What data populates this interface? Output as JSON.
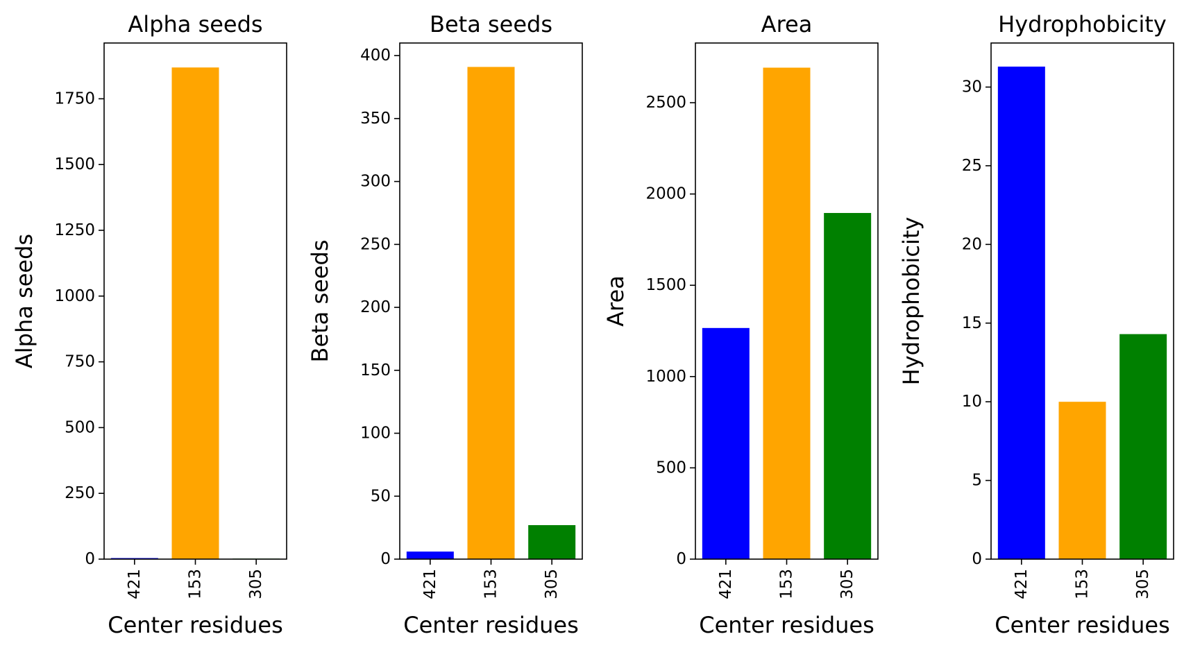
{
  "chart_data": [
    {
      "type": "bar",
      "title": "Alpha seeds",
      "xlabel": "Center residues",
      "ylabel": "Alpha seeds",
      "categories": [
        "421",
        "153",
        "305"
      ],
      "values": [
        4,
        1869,
        2
      ],
      "colors": [
        "#0000ff",
        "#ffa500",
        "#008000"
      ],
      "ylim": [
        0,
        1962
      ],
      "yticks": [
        0,
        250,
        500,
        750,
        1000,
        1250,
        1500,
        1750
      ],
      "grid": false
    },
    {
      "type": "bar",
      "title": "Beta seeds",
      "xlabel": "Center residues",
      "ylabel": "Beta seeds",
      "categories": [
        "421",
        "153",
        "305"
      ],
      "values": [
        6,
        391,
        27
      ],
      "colors": [
        "#0000ff",
        "#ffa500",
        "#008000"
      ],
      "ylim": [
        0,
        410
      ],
      "yticks": [
        0,
        50,
        100,
        150,
        200,
        250,
        300,
        350,
        400
      ],
      "grid": false
    },
    {
      "type": "bar",
      "title": "Area",
      "xlabel": "Center residues",
      "ylabel": "Area",
      "categories": [
        "421",
        "153",
        "305"
      ],
      "values": [
        1266,
        2692,
        1896
      ],
      "colors": [
        "#0000ff",
        "#ffa500",
        "#008000"
      ],
      "ylim": [
        0,
        2827
      ],
      "yticks": [
        0,
        500,
        1000,
        1500,
        2000,
        2500
      ],
      "grid": false
    },
    {
      "type": "bar",
      "title": "Hydrophobicity",
      "xlabel": "Center residues",
      "ylabel": "Hydrophobicity",
      "categories": [
        "421",
        "153",
        "305"
      ],
      "values": [
        31.3,
        10.0,
        14.3
      ],
      "colors": [
        "#0000ff",
        "#ffa500",
        "#008000"
      ],
      "ylim": [
        0,
        32.8
      ],
      "yticks": [
        0,
        5,
        10,
        15,
        20,
        25,
        30
      ],
      "grid": false
    }
  ]
}
